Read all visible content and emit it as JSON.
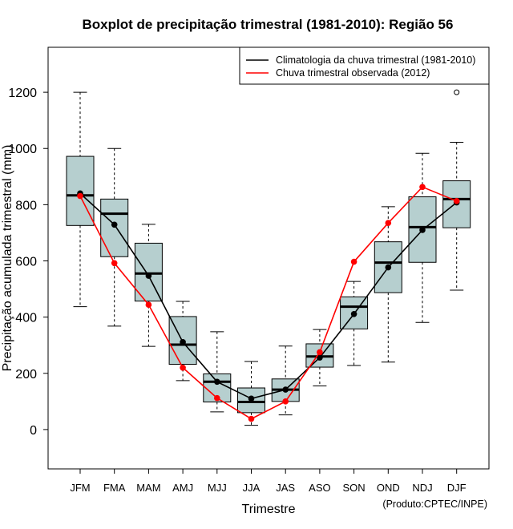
{
  "chart_data": {
    "type": "boxplot",
    "title": "Boxplot de precipitação trimestral (1981-2010): Região 56",
    "xlabel": "Trimestre",
    "ylabel": "Precipitação acumulada trimestral (mm)",
    "credit": "(Produto:CPTEC/INPE)",
    "ylim": [
      -140,
      1360
    ],
    "yticks": [
      0,
      200,
      400,
      600,
      800,
      1000,
      1200
    ],
    "ytick_labels": [
      "0",
      "200",
      "400",
      "600",
      "800",
      "1000",
      "1200"
    ],
    "categories": [
      "JFM",
      "FMA",
      "MAM",
      "AMJ",
      "MJJ",
      "JJA",
      "JAS",
      "ASO",
      "SON",
      "OND",
      "NDJ",
      "DJF"
    ],
    "boxes": [
      {
        "whisker_low": 437,
        "q1": 726,
        "median": 833,
        "q3": 972,
        "whisker_high": 1200,
        "outliers": []
      },
      {
        "whisker_low": 368,
        "q1": 615,
        "median": 768,
        "q3": 820,
        "whisker_high": 1000,
        "outliers": []
      },
      {
        "whisker_low": 296,
        "q1": 457,
        "median": 555,
        "q3": 663,
        "whisker_high": 730,
        "outliers": []
      },
      {
        "whisker_low": 174,
        "q1": 232,
        "median": 302,
        "q3": 402,
        "whisker_high": 456,
        "outliers": []
      },
      {
        "whisker_low": 63,
        "q1": 98,
        "median": 170,
        "q3": 198,
        "whisker_high": 348,
        "outliers": []
      },
      {
        "whisker_low": 15,
        "q1": 60,
        "median": 98,
        "q3": 148,
        "whisker_high": 242,
        "outliers": []
      },
      {
        "whisker_low": 52,
        "q1": 100,
        "median": 142,
        "q3": 180,
        "whisker_high": 297,
        "outliers": []
      },
      {
        "whisker_low": 155,
        "q1": 222,
        "median": 260,
        "q3": 305,
        "whisker_high": 356,
        "outliers": []
      },
      {
        "whisker_low": 228,
        "q1": 358,
        "median": 437,
        "q3": 472,
        "whisker_high": 527,
        "outliers": []
      },
      {
        "whisker_low": 240,
        "q1": 487,
        "median": 594,
        "q3": 668,
        "whisker_high": 793,
        "outliers": []
      },
      {
        "whisker_low": 381,
        "q1": 595,
        "median": 720,
        "q3": 828,
        "whisker_high": 983,
        "outliers": []
      },
      {
        "whisker_low": 496,
        "q1": 718,
        "median": 820,
        "q3": 885,
        "whisker_high": 1022,
        "outliers": [
          1200
        ]
      }
    ],
    "series": [
      {
        "name": "Climatologia da chuva trimestral (1981-2010)",
        "color": "#000000",
        "values": [
          840,
          729,
          547,
          311,
          170,
          110,
          142,
          256,
          411,
          577,
          710,
          808
        ]
      },
      {
        "name": "Chuva trimestral observada (2012)",
        "color": "#ff0000",
        "values": [
          831,
          592,
          444,
          220,
          112,
          38,
          100,
          275,
          597,
          735,
          863,
          813
        ]
      }
    ],
    "box_fill": "#b6cfcf",
    "legend_position": "top-right"
  }
}
